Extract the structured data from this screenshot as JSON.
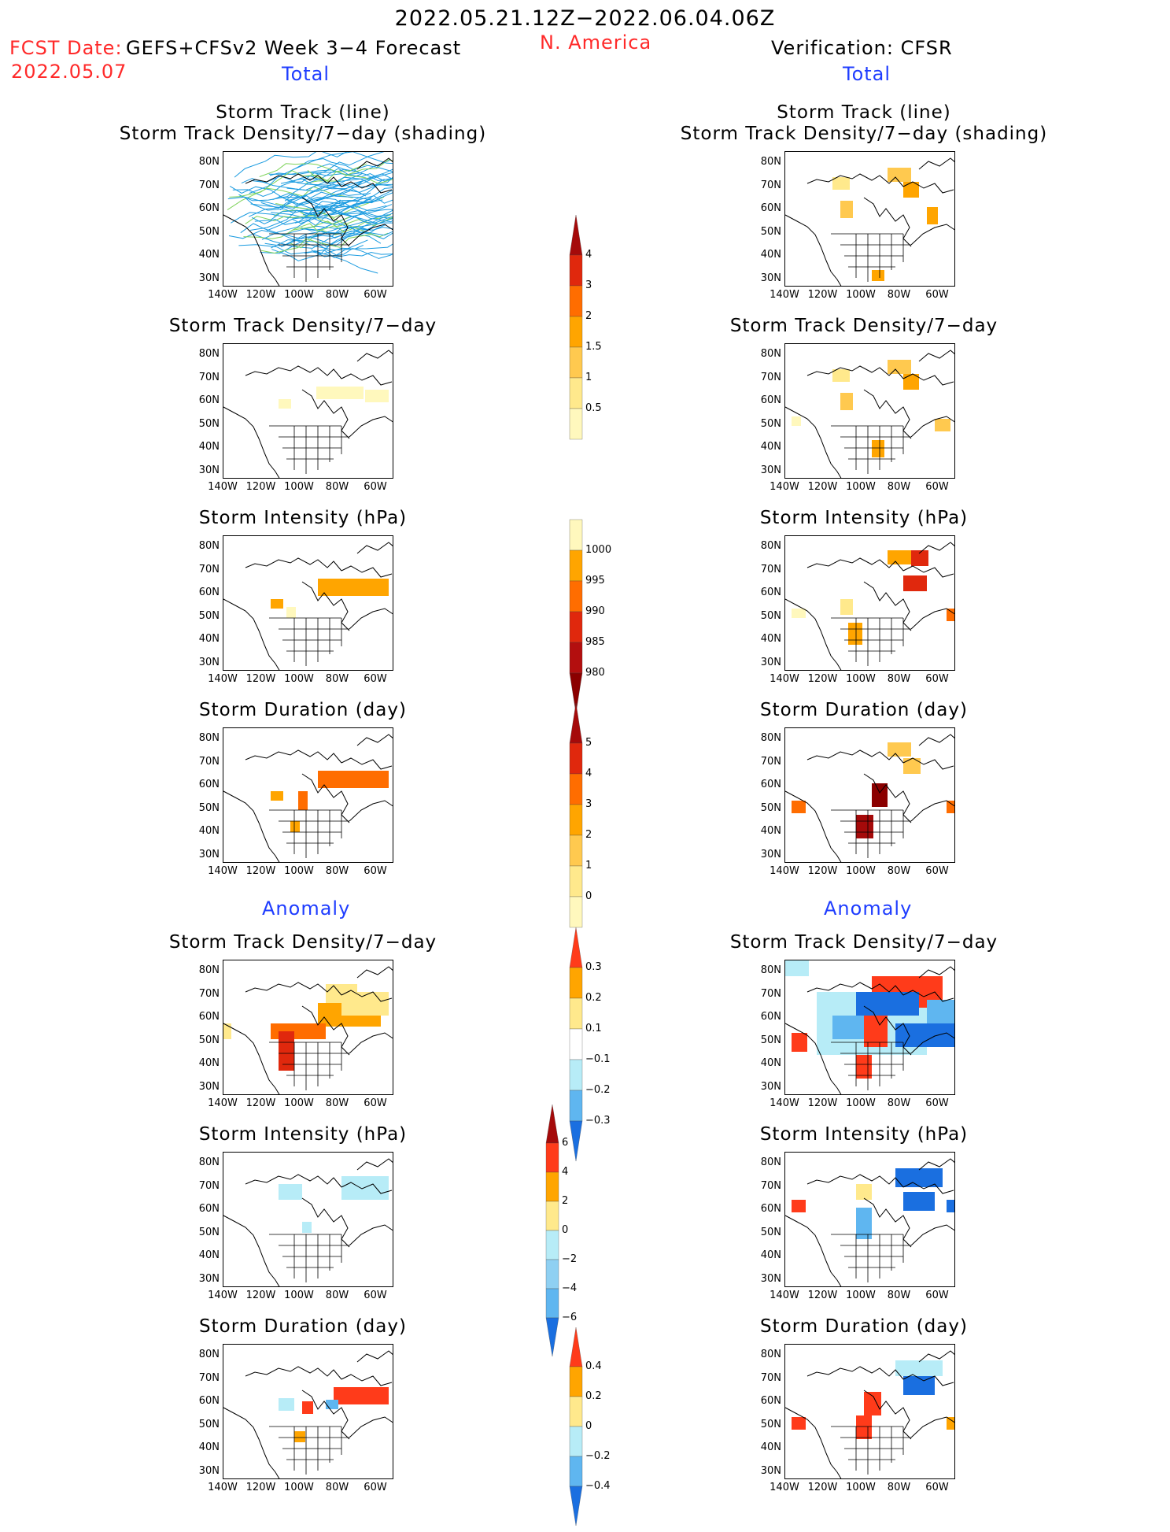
{
  "header": {
    "date_range": "2022.05.21.12Z−2022.06.04.06Z",
    "fcst_label": "FCST Date:",
    "fcst_date": "2022.05.07",
    "model_label": "GEFS+CFSv2 Week 3−4 Forecast",
    "region": "N. America",
    "verification": "Verification: CFSR"
  },
  "sections": {
    "total": "Total",
    "anomaly": "Anomaly"
  },
  "panel_titles": {
    "track_line": "Storm Track (line)",
    "track_shading": "Storm Track Density/7−day (shading)",
    "density": "Storm Track Density/7−day",
    "intensity": "Storm Intensity (hPa)",
    "duration": "Storm Duration (day)"
  },
  "axes": {
    "lat_ticks": [
      "80N",
      "70N",
      "60N",
      "50N",
      "40N",
      "30N"
    ],
    "lon_ticks": [
      "140W",
      "120W",
      "100W",
      "80W",
      "60W"
    ]
  },
  "colorbars": {
    "density_total": {
      "labels": [
        "4",
        "3",
        "2",
        "1.5",
        "1",
        "0.5"
      ],
      "colors": [
        "#a50a0a",
        "#e0280d",
        "#ff6d00",
        "#ffa500",
        "#ffc94f",
        "#ffe98c",
        "#fff8bd"
      ]
    },
    "intensity_total": {
      "labels": [
        "1000",
        "995",
        "990",
        "985",
        "980"
      ],
      "colors": [
        "#fff8bd",
        "#ffa500",
        "#ff6d00",
        "#e0280d",
        "#b30f0f",
        "#8b0000"
      ]
    },
    "duration_total": {
      "labels": [
        "5",
        "4",
        "3",
        "2",
        "1",
        "0"
      ],
      "colors": [
        "#a50a0a",
        "#e0280d",
        "#ff6d00",
        "#ffa500",
        "#ffc94f",
        "#ffe98c",
        "#fff8bd"
      ]
    },
    "density_anom": {
      "labels": [
        "0.3",
        "0.2",
        "0.1",
        "−0.1",
        "−0.2",
        "−0.3"
      ],
      "colors": [
        "#ff3b1a",
        "#ffa500",
        "#ffe98c",
        "#ffffff",
        "#b7ecf7",
        "#5fb6f0",
        "#1a6fe0"
      ]
    },
    "intensity_anom": {
      "labels": [
        "6",
        "4",
        "2",
        "0",
        "−2",
        "−4",
        "−6"
      ],
      "colors": [
        "#a50a0a",
        "#ff3b1a",
        "#ffa500",
        "#ffe98c",
        "#b7ecf7",
        "#8fd0f2",
        "#5fb6f0",
        "#1a6fe0"
      ]
    },
    "duration_anom": {
      "labels": [
        "0.4",
        "0.2",
        "0",
        "−0.2",
        "−0.4"
      ],
      "colors": [
        "#ff3b1a",
        "#ffa500",
        "#ffe98c",
        "#b7ecf7",
        "#5fb6f0",
        "#1a6fe0"
      ]
    }
  }
}
